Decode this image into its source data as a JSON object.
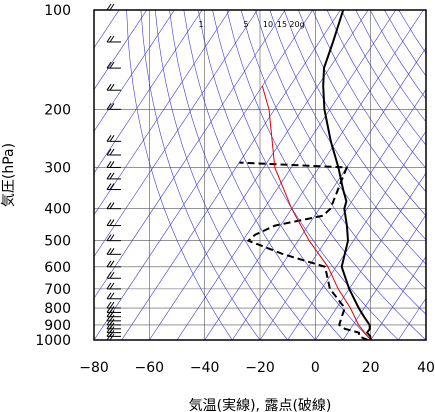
{
  "chart_data": {
    "type": "line",
    "subtype": "skew-t log-p aerological diagram",
    "xlabel": "気温(実線), 露点(破線)",
    "ylabel": "気圧(hPa)",
    "xlim": [
      -80,
      40
    ],
    "ylim": [
      1000,
      100
    ],
    "yscale": "log",
    "x_ticks": [
      "−80",
      "−60",
      "−40",
      "−20",
      "0",
      "20",
      "40"
    ],
    "y_ticks": [
      "100",
      "200",
      "300",
      "400",
      "500",
      "600",
      "700",
      "800",
      "900",
      "1000"
    ],
    "grid": true,
    "mixing_ratio_labels": [
      "1",
      "5",
      "10",
      "15",
      "20g"
    ],
    "series": [
      {
        "role": "temperature",
        "style": "solid",
        "color": "#000000",
        "points": [
          [
            1000,
            20
          ],
          [
            975,
            19
          ],
          [
            950,
            17
          ],
          [
            925,
            17
          ],
          [
            900,
            16
          ],
          [
            850,
            12
          ],
          [
            800,
            8
          ],
          [
            700,
            0
          ],
          [
            600,
            -8
          ],
          [
            500,
            -12
          ],
          [
            450,
            -16
          ],
          [
            400,
            -21
          ],
          [
            380,
            -22
          ],
          [
            350,
            -26
          ],
          [
            300,
            -33
          ],
          [
            250,
            -42
          ],
          [
            200,
            -52
          ],
          [
            170,
            -58
          ],
          [
            150,
            -62
          ],
          [
            125,
            -65
          ],
          [
            100,
            -69
          ]
        ]
      },
      {
        "role": "dewpoint",
        "style": "dashed",
        "color": "#000000",
        "points": [
          [
            1000,
            19
          ],
          [
            975,
            15
          ],
          [
            950,
            14
          ],
          [
            925,
            8
          ],
          [
            900,
            5
          ],
          [
            850,
            4
          ],
          [
            800,
            3
          ],
          [
            700,
            -7
          ],
          [
            600,
            -14
          ],
          [
            550,
            -32
          ],
          [
            500,
            -48
          ],
          [
            480,
            -47
          ],
          [
            450,
            -42
          ],
          [
            420,
            -27
          ],
          [
            400,
            -26
          ],
          [
            300,
            -30
          ],
          [
            290,
            -70
          ]
        ]
      },
      {
        "role": "parcel path",
        "style": "solid",
        "color": "#e00000",
        "points": [
          [
            1000,
            20
          ],
          [
            900,
            12
          ],
          [
            800,
            5
          ],
          [
            700,
            -4
          ],
          [
            600,
            -13
          ],
          [
            500,
            -26
          ],
          [
            400,
            -40
          ],
          [
            300,
            -56
          ],
          [
            200,
            -72
          ],
          [
            170,
            -80
          ]
        ]
      }
    ],
    "wind_barbs_column": "left edge, 100–1000 hPa"
  }
}
